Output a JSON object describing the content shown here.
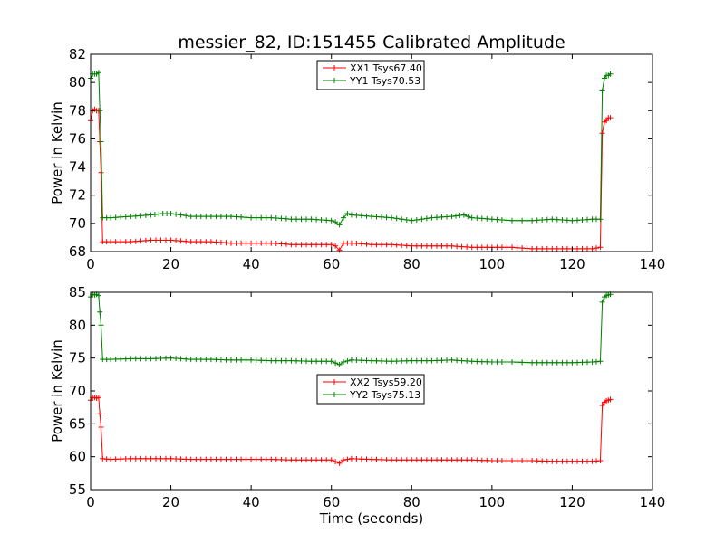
{
  "figure": {
    "title": "messier_82, ID:151455 Calibrated Amplitude"
  },
  "chart_data": [
    {
      "type": "line",
      "title": "messier_82, ID:151455 Calibrated Amplitude",
      "xlabel": "",
      "ylabel": "Power in Kelvin",
      "xlim": [
        0,
        140
      ],
      "ylim": [
        68,
        82
      ],
      "xticks": [
        0,
        20,
        40,
        60,
        80,
        100,
        120,
        140
      ],
      "yticks": [
        68,
        70,
        72,
        74,
        76,
        78,
        80,
        82
      ],
      "grid": false,
      "legend_position": "top-center",
      "series": [
        {
          "name": "XX1 Tsys67.40",
          "color": "#ff0000",
          "x": [
            0,
            0.5,
            1,
            1.5,
            2,
            2.3,
            2.6,
            3,
            5,
            10,
            15,
            20,
            25,
            30,
            35,
            40,
            45,
            50,
            55,
            60,
            61,
            62,
            63,
            65,
            70,
            75,
            80,
            85,
            90,
            95,
            100,
            105,
            110,
            115,
            120,
            125,
            127,
            127.5,
            128,
            128.5,
            129,
            129.5
          ],
          "y": [
            77.3,
            78.0,
            78.1,
            78.0,
            78.0,
            75.8,
            73.6,
            68.7,
            68.7,
            68.7,
            68.8,
            68.8,
            68.7,
            68.7,
            68.6,
            68.6,
            68.6,
            68.5,
            68.5,
            68.5,
            68.4,
            68.1,
            68.6,
            68.6,
            68.5,
            68.5,
            68.4,
            68.4,
            68.4,
            68.3,
            68.3,
            68.3,
            68.2,
            68.2,
            68.2,
            68.2,
            68.3,
            76.4,
            77.2,
            77.3,
            77.5,
            77.5
          ]
        },
        {
          "name": "YY1 Tsys70.53",
          "color": "#008000",
          "x": [
            0,
            0.5,
            1,
            1.5,
            2,
            2.3,
            2.6,
            3,
            5,
            10,
            15,
            18,
            20,
            25,
            30,
            35,
            40,
            45,
            50,
            55,
            60,
            61,
            62,
            63,
            64,
            65,
            70,
            75,
            80,
            85,
            90,
            93,
            95,
            100,
            105,
            110,
            115,
            120,
            125,
            127,
            127.5,
            128,
            128.5,
            129,
            129.5
          ],
          "y": [
            80.3,
            80.6,
            80.6,
            80.6,
            80.7,
            78.0,
            75.8,
            70.4,
            70.4,
            70.5,
            70.6,
            70.7,
            70.7,
            70.5,
            70.5,
            70.5,
            70.4,
            70.4,
            70.3,
            70.3,
            70.2,
            70.1,
            69.9,
            70.4,
            70.7,
            70.6,
            70.5,
            70.4,
            70.2,
            70.4,
            70.5,
            70.6,
            70.4,
            70.3,
            70.2,
            70.2,
            70.3,
            70.2,
            70.3,
            70.3,
            79.4,
            80.3,
            80.5,
            80.5,
            80.6
          ]
        }
      ]
    },
    {
      "type": "line",
      "title": "",
      "xlabel": "Time (seconds)",
      "ylabel": "Power in Kelvin",
      "xlim": [
        0,
        140
      ],
      "ylim": [
        55,
        85
      ],
      "xticks": [
        0,
        20,
        40,
        60,
        80,
        100,
        120,
        140
      ],
      "yticks": [
        55,
        60,
        65,
        70,
        75,
        80,
        85
      ],
      "grid": false,
      "legend_position": "center",
      "series": [
        {
          "name": "XX2 Tsys59.20",
          "color": "#ff0000",
          "x": [
            0,
            0.5,
            1,
            1.5,
            2,
            2.3,
            2.6,
            3,
            5,
            10,
            15,
            20,
            25,
            30,
            35,
            40,
            45,
            50,
            55,
            60,
            62,
            63,
            65,
            70,
            75,
            80,
            85,
            90,
            95,
            100,
            105,
            110,
            115,
            120,
            125,
            127,
            127.5,
            128,
            128.5,
            129,
            129.5
          ],
          "y": [
            68.6,
            69.0,
            69.0,
            68.9,
            69.0,
            66.5,
            64.5,
            59.7,
            59.6,
            59.7,
            59.7,
            59.7,
            59.6,
            59.6,
            59.6,
            59.6,
            59.6,
            59.5,
            59.5,
            59.5,
            59.0,
            59.5,
            59.7,
            59.6,
            59.5,
            59.5,
            59.5,
            59.5,
            59.5,
            59.4,
            59.4,
            59.4,
            59.3,
            59.3,
            59.3,
            59.4,
            67.8,
            68.3,
            68.5,
            68.6,
            68.7
          ]
        },
        {
          "name": "YY2 Tsys75.13",
          "color": "#008000",
          "x": [
            0,
            0.5,
            1,
            1.5,
            2,
            2.3,
            2.6,
            3,
            5,
            10,
            15,
            20,
            25,
            30,
            35,
            40,
            45,
            50,
            55,
            60,
            62,
            63,
            65,
            70,
            75,
            80,
            85,
            90,
            95,
            100,
            105,
            110,
            115,
            120,
            125,
            127,
            127.5,
            128,
            128.5,
            129,
            129.5
          ],
          "y": [
            84.3,
            84.7,
            84.6,
            84.7,
            84.5,
            82.0,
            80.0,
            74.8,
            74.8,
            74.9,
            74.9,
            75.0,
            74.8,
            74.8,
            74.7,
            74.7,
            74.6,
            74.6,
            74.5,
            74.5,
            74.0,
            74.4,
            74.7,
            74.6,
            74.5,
            74.6,
            74.6,
            74.7,
            74.5,
            74.4,
            74.4,
            74.3,
            74.3,
            74.3,
            74.4,
            74.5,
            83.5,
            84.3,
            84.5,
            84.6,
            84.7
          ]
        }
      ]
    }
  ]
}
